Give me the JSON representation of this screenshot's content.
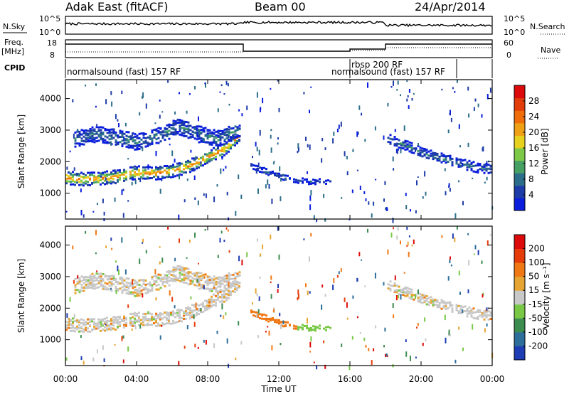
{
  "header": {
    "radar": "Adak East (fitACF)",
    "beam": "Beam 00",
    "date": "24/Apr/2014"
  },
  "summary_panels": {
    "nsky_label": "N.Sky",
    "nsky_ticks": [
      "10^5",
      "10^0"
    ],
    "nsearch_label": "N.Search",
    "nsearch_ticks": [
      "10^5",
      "10^0"
    ],
    "freq_label": "Freq.",
    "freq_unit": "[MHz]",
    "freq_ticks": [
      "18",
      "8"
    ],
    "nave_label": "Nave",
    "nave_ticks": [
      "60",
      "0"
    ],
    "cpid_label": "CPID",
    "cpid_segments": [
      {
        "label": "normalsound (fast) 157 RF",
        "start_h": 0,
        "end_h": 16
      },
      {
        "label": "rbsp 200 RF",
        "start_h": 16,
        "end_h": 18
      },
      {
        "label": "normalsound (fast) 157 RF",
        "start_h": 16,
        "end_h": 21.8
      }
    ]
  },
  "time_axis": {
    "label": "Time UT",
    "ticks": [
      "00:00",
      "04:00",
      "08:00",
      "12:00",
      "16:00",
      "20:00",
      "00:00"
    ]
  },
  "chart_data": [
    {
      "type": "heatmap",
      "title": "Power",
      "ylabel": "Slant Range [km]",
      "xlabel": "Time UT",
      "xlim_hours": [
        0,
        24
      ],
      "ylim": [
        180,
        4600
      ],
      "y_ticks": [
        "1000",
        "2000",
        "3000",
        "4000"
      ],
      "colorbar": {
        "label": "Power [dB]",
        "tick_labels": [
          "4",
          "8",
          "12",
          "16",
          "20",
          "24",
          "28"
        ],
        "range": [
          0,
          30
        ],
        "colors": [
          "#0a1edc",
          "#1e3ca8",
          "#2c6e8a",
          "#46a064",
          "#7dc846",
          "#e6d21e",
          "#f0a014",
          "#f06e0a",
          "#e13c0a",
          "#dc0a0a"
        ]
      },
      "echo_bands": [
        {
          "name": "main band",
          "start_h": 0.0,
          "end_h": 9.8,
          "center_km": [
            1520,
            1470,
            1500,
            1560,
            1690,
            1660,
            1720,
            1880,
            2150,
            2400,
            2900
          ],
          "width_km": 350,
          "peak_db": 22
        },
        {
          "name": "upper band",
          "start_h": 0.5,
          "end_h": 9.8,
          "center_km": [
            2750,
            2900,
            2800,
            2650,
            2850,
            3150,
            2900,
            2750,
            3100
          ],
          "width_km": 450,
          "peak_db": 8
        },
        {
          "name": "mid band",
          "start_h": 10.4,
          "end_h": 15.0,
          "center_km": [
            1900,
            1650,
            1450,
            1400,
            1380
          ],
          "width_km": 120,
          "peak_db": 6
        },
        {
          "name": "late band",
          "start_h": 18.1,
          "end_h": 24.0,
          "center_km": [
            2750,
            2550,
            2300,
            2150,
            2000,
            1850,
            1800
          ],
          "width_km": 250,
          "peak_db": 8
        }
      ]
    },
    {
      "type": "heatmap",
      "title": "Velocity",
      "ylabel": "Slant Range [km]",
      "xlabel": "Time UT",
      "xlim_hours": [
        0,
        24
      ],
      "ylim": [
        180,
        4600
      ],
      "y_ticks": [
        "1000",
        "2000",
        "3000",
        "4000"
      ],
      "colorbar": {
        "label": "Velocity [m s⁻¹]",
        "tick_labels": [
          "200",
          "100",
          "50",
          "15",
          "-15",
          "-50",
          "-100",
          "-200"
        ],
        "colors": [
          "#1e3cb4",
          "#2d6e9b",
          "#3c8c50",
          "#78c846",
          "#c8c8c8",
          "#e6a532",
          "#f07814",
          "#e63c0a",
          "#dc0a0a"
        ]
      }
    }
  ]
}
